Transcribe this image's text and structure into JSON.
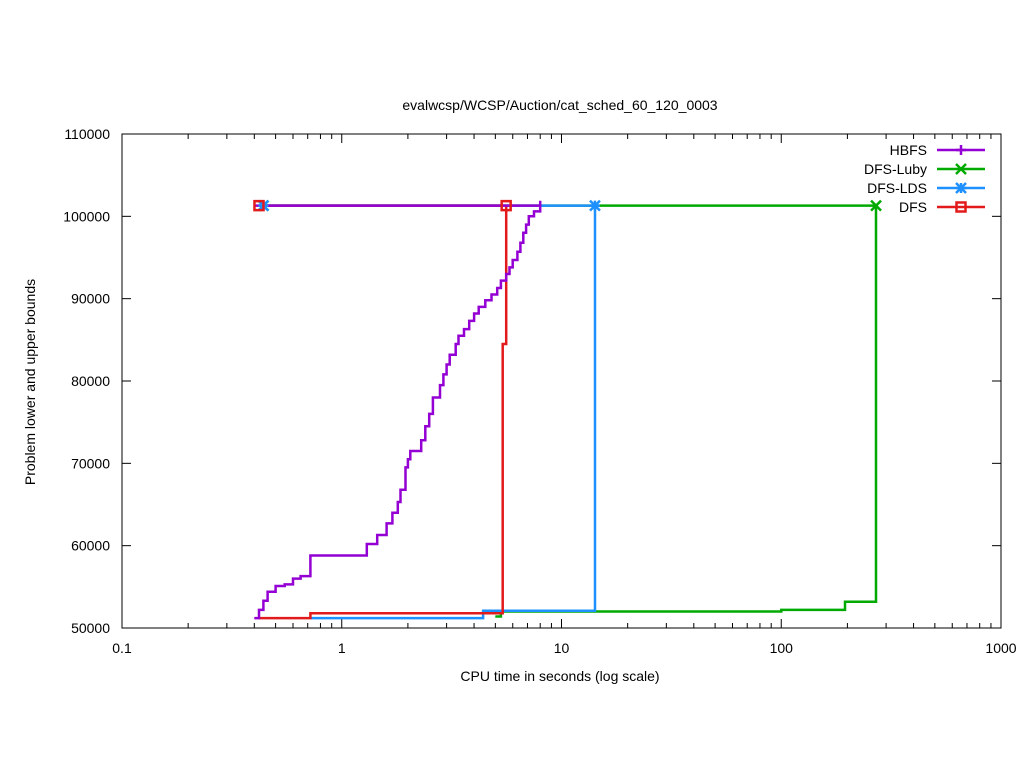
{
  "chart_data": {
    "type": "line",
    "title": "evalwcsp/WCSP/Auction/cat_sched_60_120_0003",
    "xlabel": "CPU time in seconds (log scale)",
    "ylabel": "Problem lower and upper bounds",
    "x_scale": "log",
    "xlim": [
      0.1,
      1000
    ],
    "ylim": [
      50000,
      110000
    ],
    "x_ticks": [
      0.1,
      1,
      10,
      100,
      1000
    ],
    "x_tick_labels": [
      "0.1",
      "1",
      "10",
      "100",
      "1000"
    ],
    "y_ticks": [
      50000,
      60000,
      70000,
      80000,
      90000,
      100000,
      110000
    ],
    "y_tick_labels": [
      "50000",
      "60000",
      "70000",
      "80000",
      "90000",
      "100000",
      "110000"
    ],
    "grid": false,
    "legend_position": "top-right",
    "series": [
      {
        "name": "HBFS",
        "color": "#9400d3",
        "marker": "plus",
        "lower_bound": [
          [
            0.4,
            51200
          ],
          [
            0.42,
            51200
          ],
          [
            0.42,
            52200
          ],
          [
            0.44,
            52200
          ],
          [
            0.44,
            53300
          ],
          [
            0.46,
            53300
          ],
          [
            0.46,
            54400
          ],
          [
            0.5,
            54400
          ],
          [
            0.5,
            55100
          ],
          [
            0.55,
            55100
          ],
          [
            0.55,
            55300
          ],
          [
            0.6,
            55300
          ],
          [
            0.6,
            56000
          ],
          [
            0.65,
            56000
          ],
          [
            0.65,
            56300
          ],
          [
            0.72,
            56300
          ],
          [
            0.72,
            58800
          ],
          [
            1.3,
            58800
          ],
          [
            1.3,
            60200
          ],
          [
            1.45,
            60200
          ],
          [
            1.45,
            61300
          ],
          [
            1.6,
            61300
          ],
          [
            1.6,
            62700
          ],
          [
            1.7,
            62700
          ],
          [
            1.7,
            64000
          ],
          [
            1.8,
            64000
          ],
          [
            1.8,
            65300
          ],
          [
            1.85,
            65300
          ],
          [
            1.85,
            66800
          ],
          [
            1.95,
            66800
          ],
          [
            1.95,
            69500
          ],
          [
            2.0,
            69500
          ],
          [
            2.0,
            70500
          ],
          [
            2.05,
            70500
          ],
          [
            2.05,
            71500
          ],
          [
            2.3,
            71500
          ],
          [
            2.3,
            72800
          ],
          [
            2.4,
            72800
          ],
          [
            2.4,
            74500
          ],
          [
            2.5,
            74500
          ],
          [
            2.5,
            76000
          ],
          [
            2.6,
            76000
          ],
          [
            2.6,
            78000
          ],
          [
            2.8,
            78000
          ],
          [
            2.8,
            79500
          ],
          [
            2.9,
            79500
          ],
          [
            2.9,
            80800
          ],
          [
            3.0,
            80800
          ],
          [
            3.0,
            82000
          ],
          [
            3.1,
            82000
          ],
          [
            3.1,
            83200
          ],
          [
            3.3,
            83200
          ],
          [
            3.3,
            84500
          ],
          [
            3.4,
            84500
          ],
          [
            3.4,
            85500
          ],
          [
            3.6,
            85500
          ],
          [
            3.6,
            86300
          ],
          [
            3.8,
            86300
          ],
          [
            3.8,
            87300
          ],
          [
            4.0,
            87300
          ],
          [
            4.0,
            88200
          ],
          [
            4.2,
            88200
          ],
          [
            4.2,
            89000
          ],
          [
            4.5,
            89000
          ],
          [
            4.5,
            89800
          ],
          [
            4.8,
            89800
          ],
          [
            4.8,
            90500
          ],
          [
            5.1,
            90500
          ],
          [
            5.1,
            91300
          ],
          [
            5.3,
            91300
          ],
          [
            5.3,
            92200
          ],
          [
            5.6,
            92200
          ],
          [
            5.6,
            93000
          ],
          [
            5.8,
            93000
          ],
          [
            5.8,
            93800
          ],
          [
            6.0,
            93800
          ],
          [
            6.0,
            94700
          ],
          [
            6.3,
            94700
          ],
          [
            6.3,
            95700
          ],
          [
            6.5,
            95700
          ],
          [
            6.5,
            96800
          ],
          [
            6.7,
            96800
          ],
          [
            6.7,
            98000
          ],
          [
            6.9,
            98000
          ],
          [
            6.9,
            99000
          ],
          [
            7.1,
            99000
          ],
          [
            7.1,
            100000
          ],
          [
            7.5,
            100000
          ],
          [
            7.5,
            100600
          ],
          [
            8.0,
            100600
          ],
          [
            8.0,
            101900
          ]
        ],
        "upper_bound": [
          [
            0.4,
            101300
          ],
          [
            8.0,
            101300
          ]
        ]
      },
      {
        "name": "DFS-Luby",
        "color": "#00aa00",
        "marker": "cross",
        "lower_bound": [
          [
            5.0,
            51400
          ],
          [
            5.3,
            51400
          ],
          [
            5.3,
            52000
          ],
          [
            100,
            52000
          ],
          [
            100,
            52200
          ],
          [
            195,
            52200
          ],
          [
            195,
            53200
          ],
          [
            270,
            53200
          ],
          [
            270,
            101300
          ]
        ],
        "upper_bound": [
          [
            0.44,
            101300
          ],
          [
            270,
            101300
          ]
        ]
      },
      {
        "name": "DFS-LDS",
        "color": "#1e90ff",
        "marker": "star",
        "lower_bound": [
          [
            0.72,
            51200
          ],
          [
            4.4,
            51200
          ],
          [
            4.4,
            52100
          ],
          [
            14.2,
            52100
          ],
          [
            14.2,
            101300
          ]
        ],
        "upper_bound": [
          [
            0.44,
            101300
          ],
          [
            14.2,
            101300
          ]
        ]
      },
      {
        "name": "DFS",
        "color": "#e31a1c",
        "marker": "square",
        "lower_bound": [
          [
            0.42,
            51200
          ],
          [
            0.72,
            51200
          ],
          [
            0.72,
            51800
          ],
          [
            5.4,
            51800
          ],
          [
            5.4,
            84500
          ],
          [
            5.6,
            84500
          ],
          [
            5.6,
            101300
          ]
        ],
        "upper_bound": [
          [
            0.42,
            101300
          ],
          [
            5.6,
            101300
          ]
        ]
      }
    ],
    "markers": [
      {
        "series": "HBFS",
        "x": 0.44,
        "y": 101300
      },
      {
        "series": "DFS-Luby",
        "x": 0.44,
        "y": 101300
      },
      {
        "series": "DFS-Luby",
        "x": 270,
        "y": 101300
      },
      {
        "series": "DFS-LDS",
        "x": 0.44,
        "y": 101300
      },
      {
        "series": "DFS-LDS",
        "x": 14.2,
        "y": 101300
      },
      {
        "series": "DFS",
        "x": 0.42,
        "y": 101300
      },
      {
        "series": "DFS",
        "x": 5.6,
        "y": 101300
      }
    ]
  }
}
